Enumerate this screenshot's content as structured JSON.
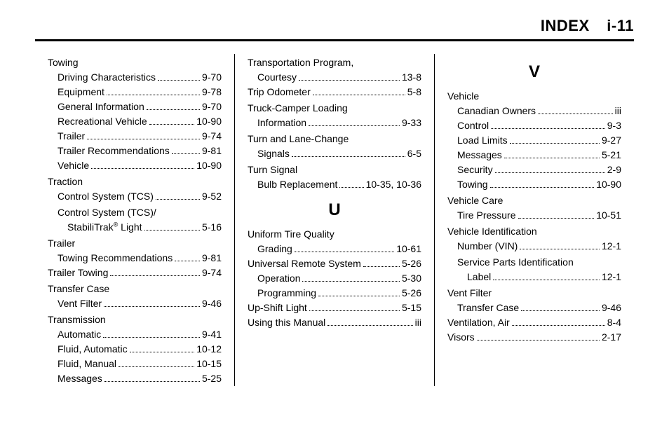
{
  "header": {
    "title": "INDEX",
    "page": "i-11"
  },
  "col1": [
    {
      "type": "head",
      "label": "Towing"
    },
    {
      "type": "sub",
      "label": "Driving Characteristics",
      "page": "9-70"
    },
    {
      "type": "sub",
      "label": "Equipment",
      "page": "9-78"
    },
    {
      "type": "sub",
      "label": "General Information",
      "page": "9-70"
    },
    {
      "type": "sub",
      "label": "Recreational Vehicle",
      "page": "10-90"
    },
    {
      "type": "sub",
      "label": "Trailer",
      "page": "9-74"
    },
    {
      "type": "sub",
      "label": "Trailer Recommendations",
      "page": "9-81"
    },
    {
      "type": "sub",
      "label": "Vehicle",
      "page": "10-90"
    },
    {
      "type": "head",
      "label": "Traction"
    },
    {
      "type": "sub",
      "label": "Control System (TCS)",
      "page": "9-52"
    },
    {
      "type": "subhead",
      "label": "Control System (TCS)/"
    },
    {
      "type": "sub2",
      "label_html": "StabiliTrak<sup>®</sup> Light",
      "page": "5-16"
    },
    {
      "type": "head",
      "label": "Trailer"
    },
    {
      "type": "sub",
      "label": "Towing Recommendations",
      "page": "9-81"
    },
    {
      "type": "top",
      "label": "Trailer Towing",
      "page": "9-74"
    },
    {
      "type": "head",
      "label": "Transfer Case"
    },
    {
      "type": "sub",
      "label": "Vent Filter",
      "page": "9-46"
    },
    {
      "type": "head",
      "label": "Transmission"
    },
    {
      "type": "sub",
      "label": "Automatic",
      "page": "9-41"
    },
    {
      "type": "sub",
      "label": "Fluid, Automatic",
      "page": "10-12"
    },
    {
      "type": "sub",
      "label": "Fluid, Manual",
      "page": "10-15"
    },
    {
      "type": "sub",
      "label": "Messages",
      "page": "5-25"
    }
  ],
  "col2": [
    {
      "type": "head",
      "label": "Transportation Program,"
    },
    {
      "type": "sub",
      "label": "Courtesy",
      "page": "13-8"
    },
    {
      "type": "top",
      "label": "Trip Odometer",
      "page": "5-8"
    },
    {
      "type": "head",
      "label": "Truck-Camper Loading"
    },
    {
      "type": "sub",
      "label": "Information",
      "page": "9-33"
    },
    {
      "type": "head",
      "label": "Turn and Lane-Change"
    },
    {
      "type": "sub",
      "label": "Signals",
      "page": "6-5"
    },
    {
      "type": "head",
      "label": "Turn Signal"
    },
    {
      "type": "sub",
      "label": "Bulb Replacement",
      "page": "10-35, 10-36"
    },
    {
      "type": "letter",
      "label": "U"
    },
    {
      "type": "head",
      "label": "Uniform Tire Quality"
    },
    {
      "type": "sub",
      "label": "Grading",
      "page": "10-61"
    },
    {
      "type": "top",
      "label": "Universal Remote System",
      "page": "5-26"
    },
    {
      "type": "sub",
      "label": "Operation",
      "page": "5-30"
    },
    {
      "type": "sub",
      "label": "Programming",
      "page": "5-26"
    },
    {
      "type": "top",
      "label": "Up-Shift Light",
      "page": "5-15"
    },
    {
      "type": "top",
      "label": "Using this Manual",
      "page": "iii"
    }
  ],
  "col3": [
    {
      "type": "letter",
      "label": "V"
    },
    {
      "type": "head",
      "label": "Vehicle"
    },
    {
      "type": "sub",
      "label": "Canadian Owners",
      "page": "iii"
    },
    {
      "type": "sub",
      "label": "Control",
      "page": "9-3"
    },
    {
      "type": "sub",
      "label": "Load Limits",
      "page": "9-27"
    },
    {
      "type": "sub",
      "label": "Messages",
      "page": "5-21"
    },
    {
      "type": "sub",
      "label": "Security",
      "page": "2-9"
    },
    {
      "type": "sub",
      "label": "Towing",
      "page": "10-90"
    },
    {
      "type": "head",
      "label": "Vehicle Care"
    },
    {
      "type": "sub",
      "label": "Tire Pressure",
      "page": "10-51"
    },
    {
      "type": "head",
      "label": "Vehicle Identification"
    },
    {
      "type": "sub",
      "label": "Number (VIN)",
      "page": "12-1"
    },
    {
      "type": "subhead",
      "label": "Service Parts Identification"
    },
    {
      "type": "sub2",
      "label": "Label",
      "page": "12-1"
    },
    {
      "type": "head",
      "label": "Vent Filter"
    },
    {
      "type": "sub",
      "label": "Transfer Case",
      "page": "9-46"
    },
    {
      "type": "top",
      "label": "Ventilation, Air",
      "page": "8-4"
    },
    {
      "type": "top",
      "label": "Visors",
      "page": "2-17"
    }
  ]
}
